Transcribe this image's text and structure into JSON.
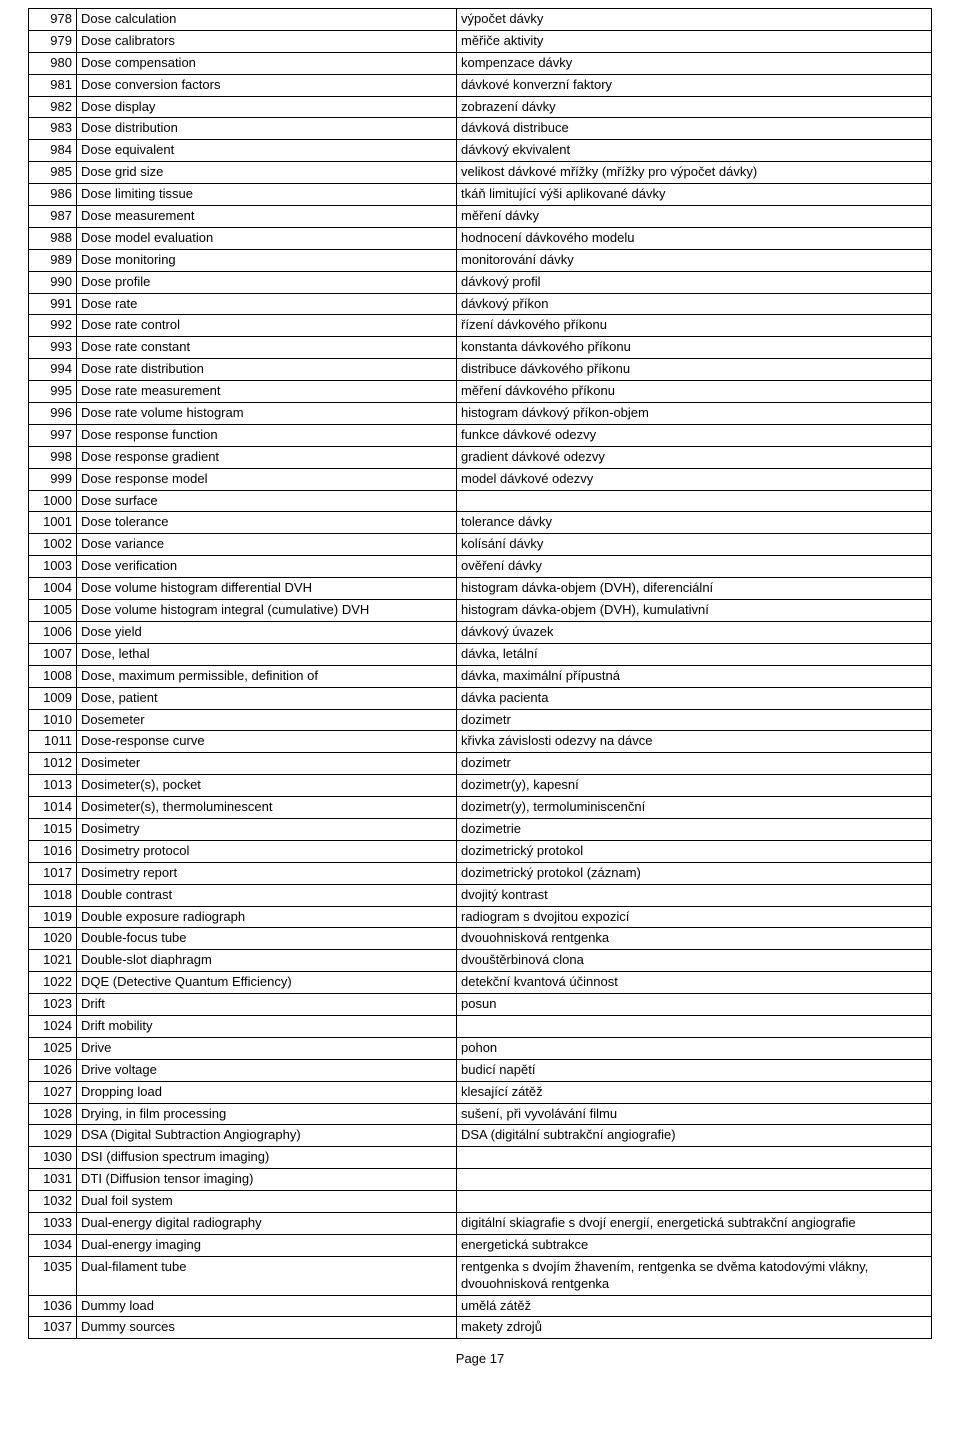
{
  "footer": "Page 17",
  "rows": [
    {
      "n": "978",
      "en": "Dose calculation",
      "cs": "výpočet dávky"
    },
    {
      "n": "979",
      "en": "Dose calibrators",
      "cs": "měřiče aktivity"
    },
    {
      "n": "980",
      "en": "Dose compensation",
      "cs": "kompenzace dávky"
    },
    {
      "n": "981",
      "en": "Dose conversion factors",
      "cs": "dávkové konverzní faktory"
    },
    {
      "n": "982",
      "en": "Dose display",
      "cs": "zobrazení dávky"
    },
    {
      "n": "983",
      "en": "Dose distribution",
      "cs": "dávková distribuce"
    },
    {
      "n": "984",
      "en": "Dose equivalent",
      "cs": "dávkový ekvivalent"
    },
    {
      "n": "985",
      "en": "Dose grid size",
      "cs": "velikost dávkové mřížky (mřížky pro výpočet dávky)"
    },
    {
      "n": "986",
      "en": "Dose limiting tissue",
      "cs": "tkáň limitující výši aplikované dávky"
    },
    {
      "n": "987",
      "en": "Dose measurement",
      "cs": "měření dávky"
    },
    {
      "n": "988",
      "en": "Dose model evaluation",
      "cs": "hodnocení dávkového modelu"
    },
    {
      "n": "989",
      "en": "Dose monitoring",
      "cs": "monitorování dávky"
    },
    {
      "n": "990",
      "en": "Dose profile",
      "cs": "dávkový profil"
    },
    {
      "n": "991",
      "en": "Dose rate",
      "cs": "dávkový příkon"
    },
    {
      "n": "992",
      "en": "Dose rate control",
      "cs": "řízení dávkového příkonu"
    },
    {
      "n": "993",
      "en": "Dose rate constant",
      "cs": "konstanta dávkového příkonu"
    },
    {
      "n": "994",
      "en": "Dose rate distribution",
      "cs": "distribuce dávkového příkonu"
    },
    {
      "n": "995",
      "en": "Dose rate measurement",
      "cs": "měření dávkového příkonu"
    },
    {
      "n": "996",
      "en": "Dose rate volume histogram",
      "cs": "histogram dávkový příkon-objem"
    },
    {
      "n": "997",
      "en": "Dose response function",
      "cs": "funkce dávkové odezvy"
    },
    {
      "n": "998",
      "en": "Dose response gradient",
      "cs": "gradient dávkové odezvy"
    },
    {
      "n": "999",
      "en": "Dose response model",
      "cs": "model dávkové odezvy"
    },
    {
      "n": "1000",
      "en": "Dose surface",
      "cs": ""
    },
    {
      "n": "1001",
      "en": "Dose tolerance",
      "cs": "tolerance dávky"
    },
    {
      "n": "1002",
      "en": "Dose variance",
      "cs": "kolísání dávky"
    },
    {
      "n": "1003",
      "en": "Dose verification",
      "cs": "ověření dávky"
    },
    {
      "n": "1004",
      "en": "Dose volume histogram differential DVH",
      "cs": "histogram dávka-objem (DVH), diferenciální"
    },
    {
      "n": "1005",
      "en": "Dose volume histogram integral (cumulative) DVH",
      "cs": "histogram dávka-objem (DVH), kumulativní"
    },
    {
      "n": "1006",
      "en": "Dose yield",
      "cs": "dávkový úvazek"
    },
    {
      "n": "1007",
      "en": "Dose, lethal",
      "cs": "dávka, letální"
    },
    {
      "n": "1008",
      "en": "Dose, maximum permissible, definition of",
      "cs": "dávka, maximální přípustná"
    },
    {
      "n": "1009",
      "en": "Dose, patient",
      "cs": "dávka pacienta"
    },
    {
      "n": "1010",
      "en": "Dosemeter",
      "cs": "dozimetr"
    },
    {
      "n": "1011",
      "en": "Dose-response curve",
      "cs": "křivka závislosti odezvy na dávce"
    },
    {
      "n": "1012",
      "en": "Dosimeter",
      "cs": "dozimetr"
    },
    {
      "n": "1013",
      "en": "Dosimeter(s), pocket",
      "cs": "dozimetr(y), kapesní"
    },
    {
      "n": "1014",
      "en": "Dosimeter(s), thermoluminescent",
      "cs": "dozimetr(y), termoluminiscenční"
    },
    {
      "n": "1015",
      "en": "Dosimetry",
      "cs": "dozimetrie"
    },
    {
      "n": "1016",
      "en": "Dosimetry protocol",
      "cs": "dozimetrický protokol"
    },
    {
      "n": "1017",
      "en": "Dosimetry report",
      "cs": "dozimetrický protokol (záznam)"
    },
    {
      "n": "1018",
      "en": "Double contrast",
      "cs": "dvojitý kontrast"
    },
    {
      "n": "1019",
      "en": "Double exposure radiograph",
      "cs": "radiogram s dvojitou expozicí"
    },
    {
      "n": "1020",
      "en": "Double-focus tube",
      "cs": "dvouohnisková rentgenka"
    },
    {
      "n": "1021",
      "en": "Double-slot diaphragm",
      "cs": "dvouštěrbinová clona"
    },
    {
      "n": "1022",
      "en": "DQE (Detective Quantum Efficiency)",
      "cs": "detekční kvantová účinnost"
    },
    {
      "n": "1023",
      "en": "Drift",
      "cs": "posun"
    },
    {
      "n": "1024",
      "en": "Drift mobility",
      "cs": ""
    },
    {
      "n": "1025",
      "en": "Drive",
      "cs": "pohon"
    },
    {
      "n": "1026",
      "en": "Drive voltage",
      "cs": "budicí napětí"
    },
    {
      "n": "1027",
      "en": "Dropping load",
      "cs": "klesající zátěž"
    },
    {
      "n": "1028",
      "en": "Drying, in film processing",
      "cs": "sušení, při vyvolávání filmu"
    },
    {
      "n": "1029",
      "en": "DSA (Digital Subtraction Angiography)",
      "cs": "DSA (digitální subtrakční angiografie)"
    },
    {
      "n": "1030",
      "en": "DSI (diffusion spectrum imaging)",
      "cs": ""
    },
    {
      "n": "1031",
      "en": "DTI (Diffusion tensor imaging)",
      "cs": ""
    },
    {
      "n": "1032",
      "en": "Dual foil system",
      "cs": ""
    },
    {
      "n": "1033",
      "en": "Dual-energy digital radiography",
      "cs": "digitální skiagrafie s dvojí energií, energetická subtrakční angiografie"
    },
    {
      "n": "1034",
      "en": "Dual-energy imaging",
      "cs": "energetická subtrakce"
    },
    {
      "n": "1035",
      "en": "Dual-filament tube",
      "cs": "rentgenka s dvojím žhavením, rentgenka se dvěma katodovými vlákny, dvouohnisková rentgenka"
    },
    {
      "n": "1036",
      "en": "Dummy load",
      "cs": "umělá zátěž"
    },
    {
      "n": "1037",
      "en": "Dummy sources",
      "cs": "makety zdrojů"
    }
  ]
}
